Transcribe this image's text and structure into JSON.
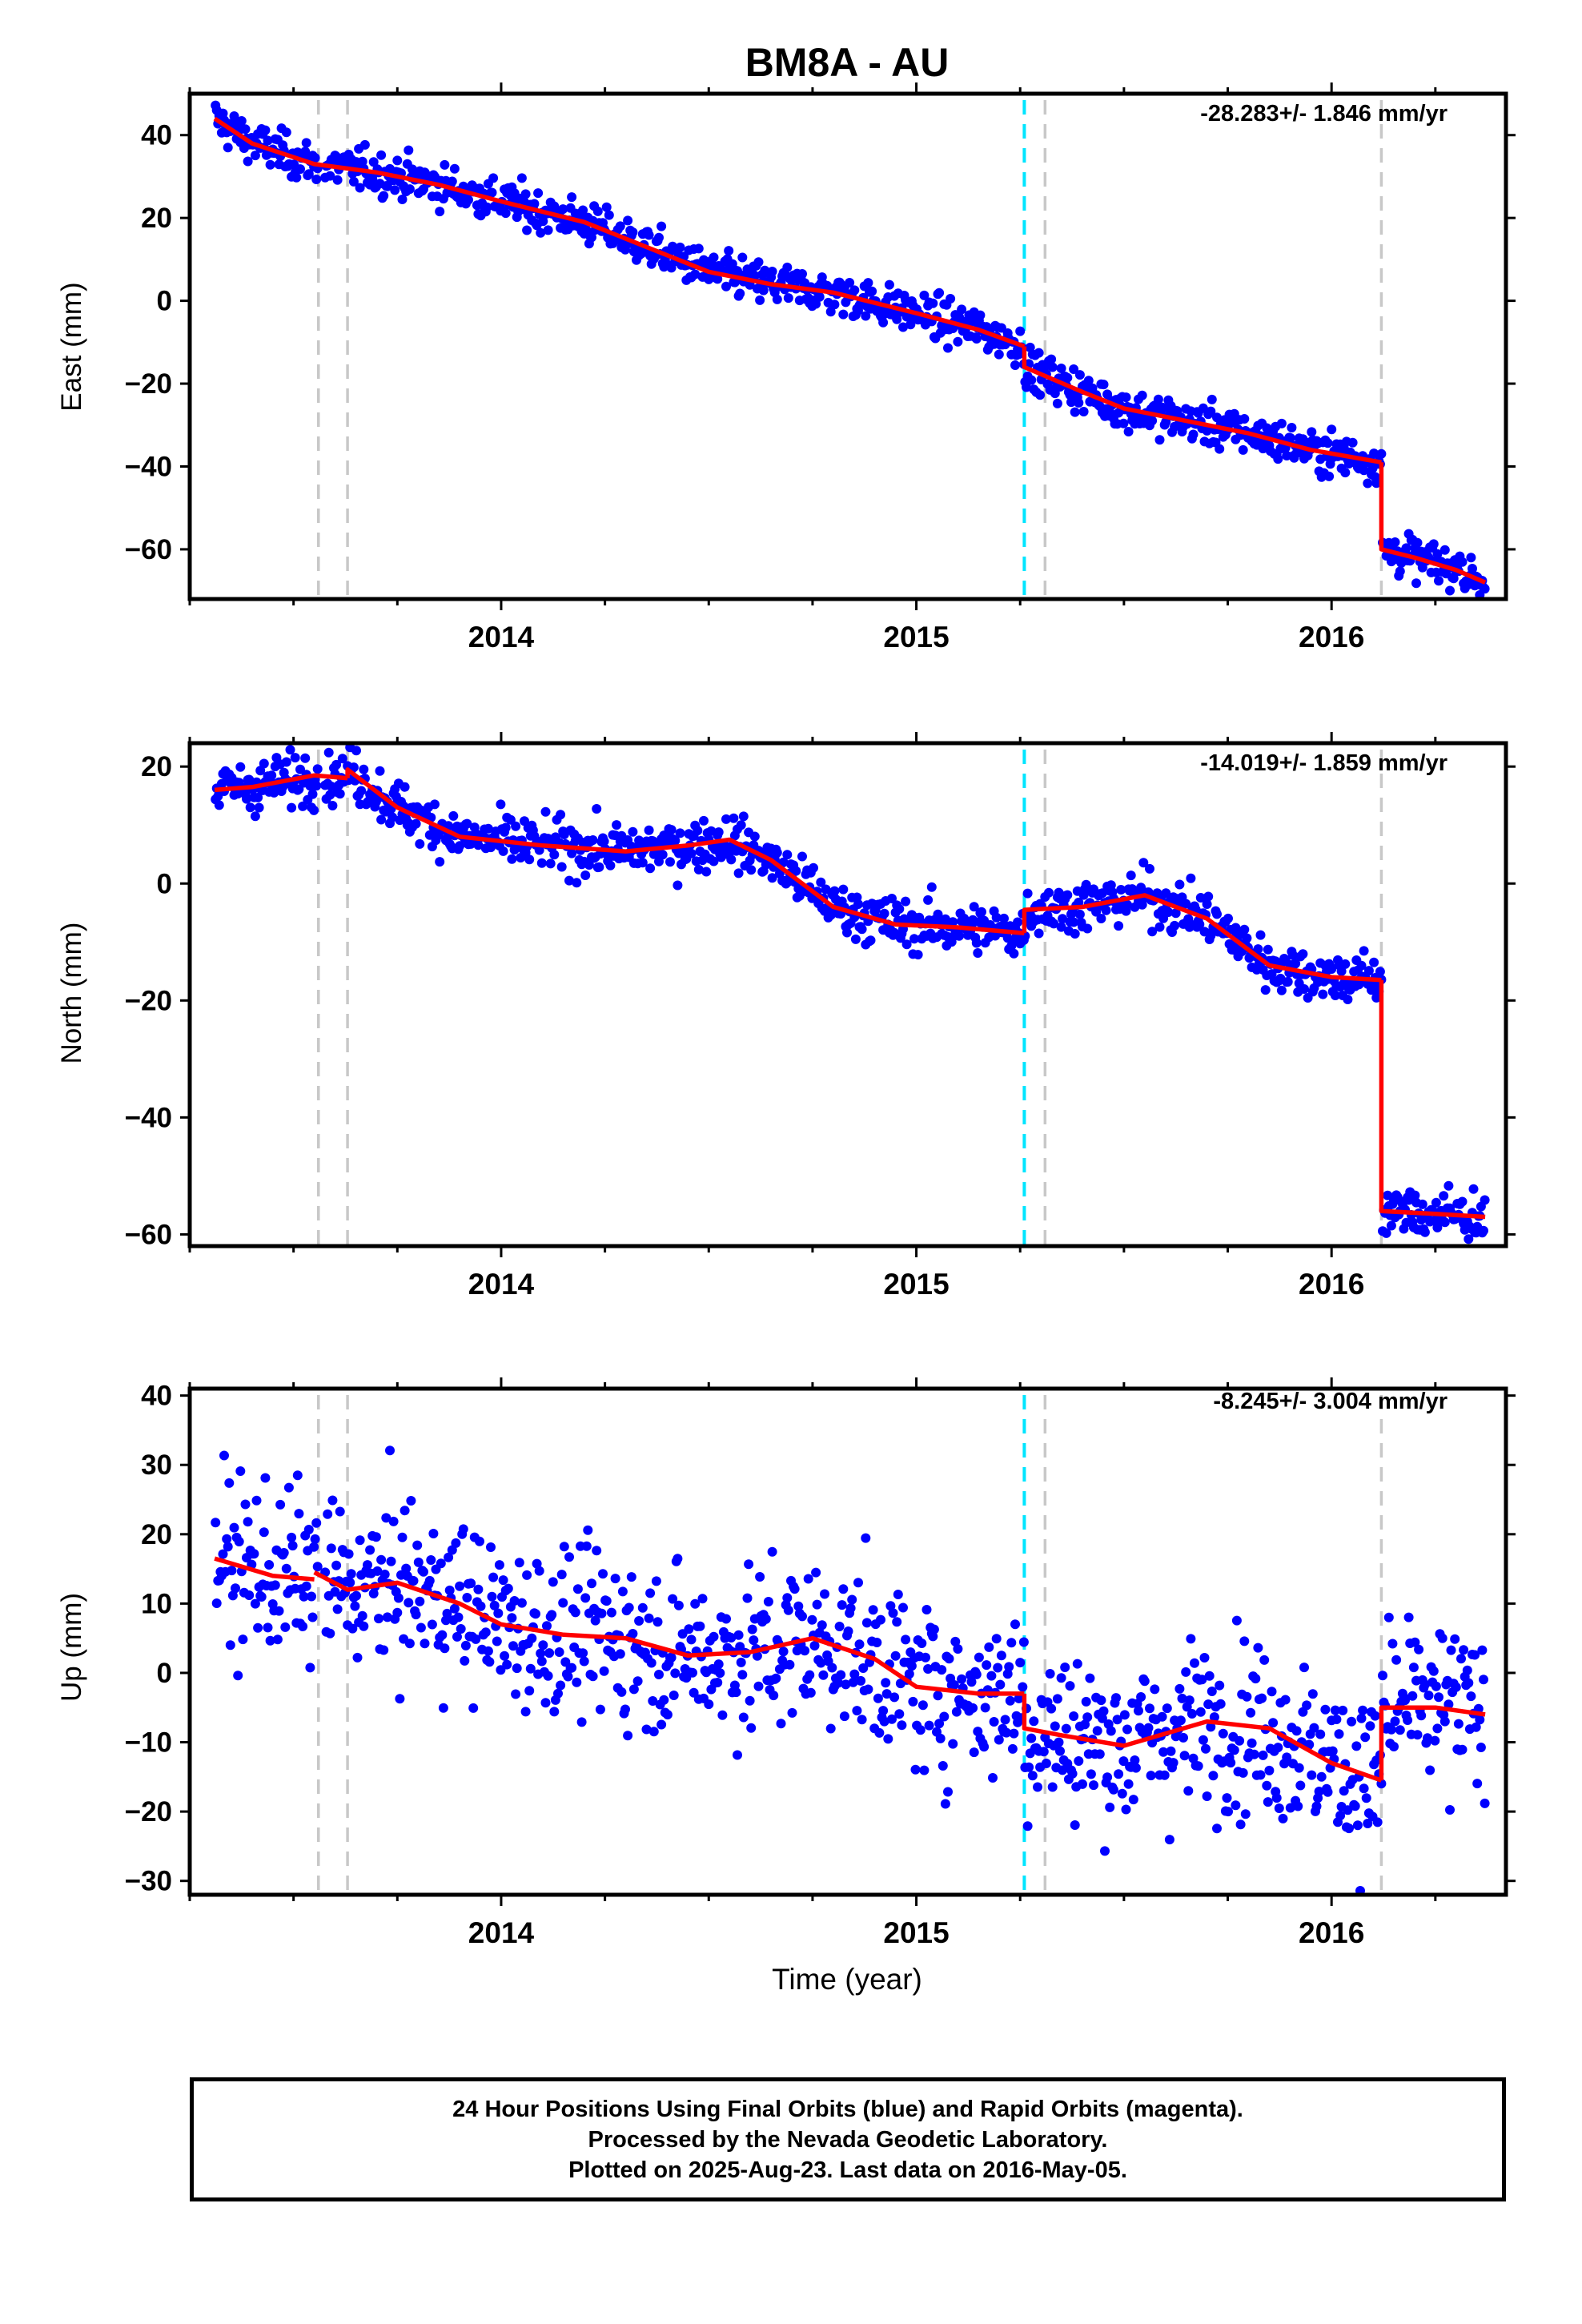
{
  "title": "BM8A - AU",
  "xlabel": "Time (year)",
  "footer": {
    "line1": "24 Hour Positions Using Final Orbits (blue) and Rapid Orbits (magenta).",
    "line2": "Processed by the Nevada Geodetic Laboratory.",
    "line3": "Plotted on 2025-Aug-23. Last data on 2016-May-05."
  },
  "colors": {
    "data": "#0000ff",
    "model": "#ff0000",
    "equipment_change": "#c8c8c8",
    "earthquake": "#00e5ff"
  },
  "chart_data": [
    {
      "type": "scatter",
      "panel": "east",
      "ylabel": "East (mm)",
      "rate_label": "-28.283+/- 1.846 mm/yr",
      "xlim": [
        2013.25,
        2016.42
      ],
      "ylim": [
        -72,
        50
      ],
      "yticks": [
        40,
        20,
        0,
        -20,
        -40,
        -60
      ],
      "xticks": [
        2014,
        2015,
        2016
      ],
      "scatter": 2.5,
      "series": [
        {
          "role": "model",
          "segments": [
            [
              [
                2013.31,
                44
              ],
              [
                2013.4,
                38
              ],
              [
                2013.55,
                33
              ],
              [
                2013.7,
                31
              ],
              [
                2013.85,
                28
              ],
              [
                2014.0,
                24
              ],
              [
                2014.2,
                19
              ],
              [
                2014.35,
                13
              ],
              [
                2014.5,
                7
              ],
              [
                2014.65,
                4
              ],
              [
                2014.8,
                2
              ],
              [
                2015.0,
                -3
              ],
              [
                2015.15,
                -7
              ],
              [
                2015.26,
                -11
              ]
            ],
            [
              [
                2015.26,
                -11
              ],
              [
                2015.26,
                -16
              ],
              [
                2015.4,
                -22
              ],
              [
                2015.5,
                -26
              ],
              [
                2015.65,
                -29
              ],
              [
                2015.8,
                -32
              ],
              [
                2015.95,
                -36
              ],
              [
                2016.12,
                -39
              ]
            ],
            [
              [
                2016.12,
                -39
              ],
              [
                2016.12,
                -60
              ],
              [
                2016.2,
                -62
              ],
              [
                2016.3,
                -65
              ],
              [
                2016.37,
                -68
              ]
            ]
          ]
        }
      ]
    },
    {
      "type": "scatter",
      "panel": "north",
      "ylabel": "North (mm)",
      "rate_label": "-14.019+/- 1.859 mm/yr",
      "xlim": [
        2013.25,
        2016.42
      ],
      "ylim": [
        -62,
        24
      ],
      "yticks": [
        20,
        0,
        -20,
        -40,
        -60
      ],
      "xticks": [
        2014,
        2015,
        2016
      ],
      "scatter": 2.2,
      "series": [
        {
          "role": "model",
          "segments": [
            [
              [
                2013.31,
                16
              ],
              [
                2013.4,
                16.5
              ],
              [
                2013.55,
                18.5
              ],
              [
                2013.63,
                18
              ]
            ],
            [
              [
                2013.63,
                18
              ],
              [
                2013.63,
                19.5
              ],
              [
                2013.75,
                13
              ],
              [
                2013.9,
                8
              ],
              [
                2014.1,
                6.5
              ],
              [
                2014.3,
                5.5
              ],
              [
                2014.45,
                6.5
              ],
              [
                2014.55,
                7.5
              ],
              [
                2014.65,
                4
              ],
              [
                2014.8,
                -4
              ],
              [
                2014.95,
                -7
              ],
              [
                2015.1,
                -7.5
              ],
              [
                2015.26,
                -8.5
              ]
            ],
            [
              [
                2015.26,
                -8.5
              ],
              [
                2015.26,
                -4.5
              ],
              [
                2015.4,
                -4
              ],
              [
                2015.55,
                -2
              ],
              [
                2015.7,
                -6
              ],
              [
                2015.85,
                -14
              ],
              [
                2016.0,
                -16
              ],
              [
                2016.12,
                -16.5
              ]
            ],
            [
              [
                2016.12,
                -16.5
              ],
              [
                2016.12,
                -56
              ],
              [
                2016.25,
                -56.5
              ],
              [
                2016.37,
                -57
              ]
            ]
          ]
        }
      ]
    },
    {
      "type": "scatter",
      "panel": "up",
      "ylabel": "Up (mm)",
      "rate_label": "-8.245+/- 3.004 mm/yr",
      "xlim": [
        2013.25,
        2016.42
      ],
      "ylim": [
        -32,
        41
      ],
      "yticks": [
        40,
        30,
        20,
        10,
        0,
        -10,
        -20,
        -30
      ],
      "xticks": [
        2014,
        2015,
        2016
      ],
      "scatter": 6,
      "series": [
        {
          "role": "model",
          "segments": [
            [
              [
                2013.31,
                16.5
              ],
              [
                2013.45,
                14
              ],
              [
                2013.55,
                13.5
              ]
            ],
            [
              [
                2013.55,
                14.5
              ],
              [
                2013.63,
                12
              ],
              [
                2013.75,
                13
              ],
              [
                2013.9,
                10
              ],
              [
                2014.0,
                7
              ],
              [
                2014.15,
                5.5
              ],
              [
                2014.3,
                5
              ],
              [
                2014.45,
                2.5
              ],
              [
                2014.6,
                3
              ],
              [
                2014.75,
                5
              ],
              [
                2014.9,
                2
              ],
              [
                2015.0,
                -2
              ],
              [
                2015.15,
                -3
              ],
              [
                2015.26,
                -3
              ]
            ],
            [
              [
                2015.26,
                -3
              ],
              [
                2015.26,
                -8
              ],
              [
                2015.35,
                -9
              ],
              [
                2015.5,
                -10.5
              ],
              [
                2015.7,
                -7
              ],
              [
                2015.85,
                -8
              ],
              [
                2016.0,
                -13
              ],
              [
                2016.12,
                -15.5
              ]
            ],
            [
              [
                2016.12,
                -15.5
              ],
              [
                2016.12,
                -5
              ],
              [
                2016.25,
                -5
              ],
              [
                2016.37,
                -6
              ]
            ]
          ]
        }
      ]
    }
  ],
  "event_lines": {
    "equipment_change": [
      2013.56,
      2013.63,
      2015.31,
      2016.12
    ],
    "earthquake": [
      2015.26
    ]
  }
}
